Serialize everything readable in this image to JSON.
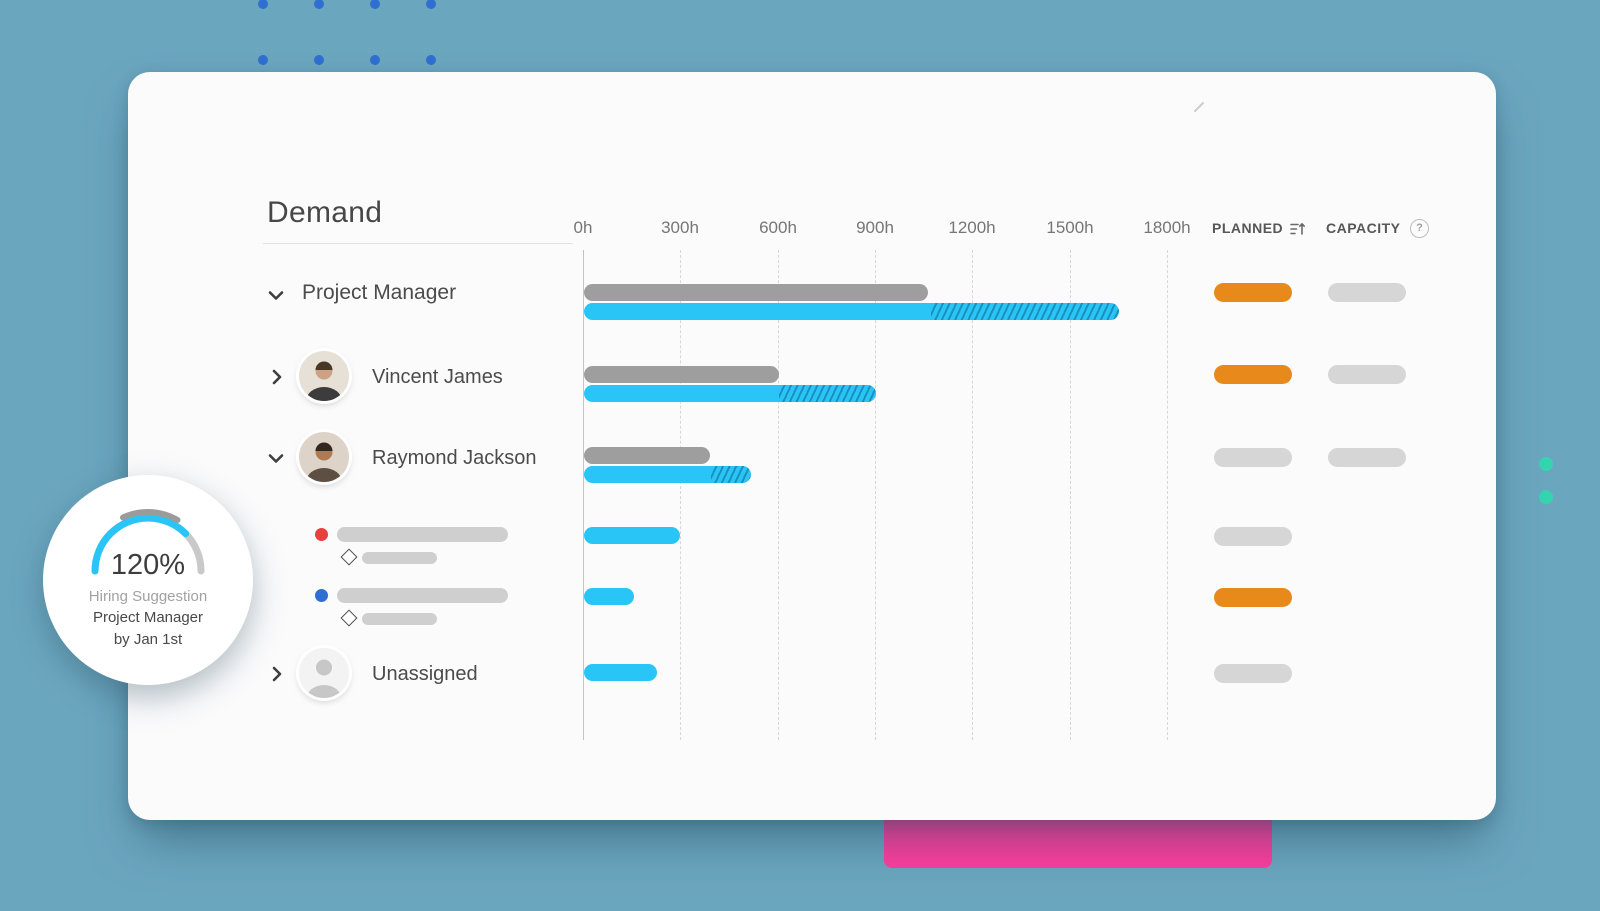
{
  "panel": {
    "title": "Demand"
  },
  "axis": {
    "ticks": [
      "0h",
      "300h",
      "600h",
      "900h",
      "1200h",
      "1500h",
      "1800h"
    ]
  },
  "columns": {
    "planned": "PLANNED",
    "capacity": "CAPACITY",
    "help": "?"
  },
  "rows": [
    {
      "name": "Project Manager",
      "kind": "role-group",
      "expanded": true,
      "demand_h": 1060,
      "planned_total_h": 1650,
      "planned_hatch_h": 580,
      "planned_pill": "orange",
      "capacity_pill": "gray"
    },
    {
      "name": "Vincent James",
      "kind": "person",
      "expanded": false,
      "demand_h": 600,
      "planned_total_h": 900,
      "planned_hatch_h": 300,
      "planned_pill": "orange",
      "capacity_pill": "gray"
    },
    {
      "name": "Raymond Jackson",
      "kind": "person",
      "expanded": true,
      "demand_h": 390,
      "planned_total_h": 515,
      "planned_hatch_h": 125,
      "planned_pill": "gray",
      "capacity_pill": "gray"
    },
    {
      "name": "",
      "kind": "project-item",
      "marker_color": "#E8413D",
      "planned_total_h": 295,
      "planned_hatch_h": 0,
      "planned_pill": "gray"
    },
    {
      "name": "",
      "kind": "project-item",
      "marker_color": "#2F6FD1",
      "planned_total_h": 155,
      "planned_hatch_h": 0,
      "planned_pill": "orange"
    },
    {
      "name": "Unassigned",
      "kind": "unassigned",
      "expanded": false,
      "planned_total_h": 225,
      "planned_hatch_h": 0,
      "planned_pill": "gray"
    }
  ],
  "badge": {
    "value": "120%",
    "label": "Hiring Suggestion",
    "role": "Project Manager",
    "date": "by Jan 1st"
  },
  "colors": {
    "planned_cyan": "#29C5F6",
    "demand_gray": "#9E9E9E",
    "pill_orange": "#E8891B",
    "pill_gray": "#D6D6D6",
    "accent_pink": "#FF3D9E",
    "dot_teal": "#35D4B0",
    "dot_blue": "#2F6FD1",
    "background": "#6BA6BF"
  }
}
